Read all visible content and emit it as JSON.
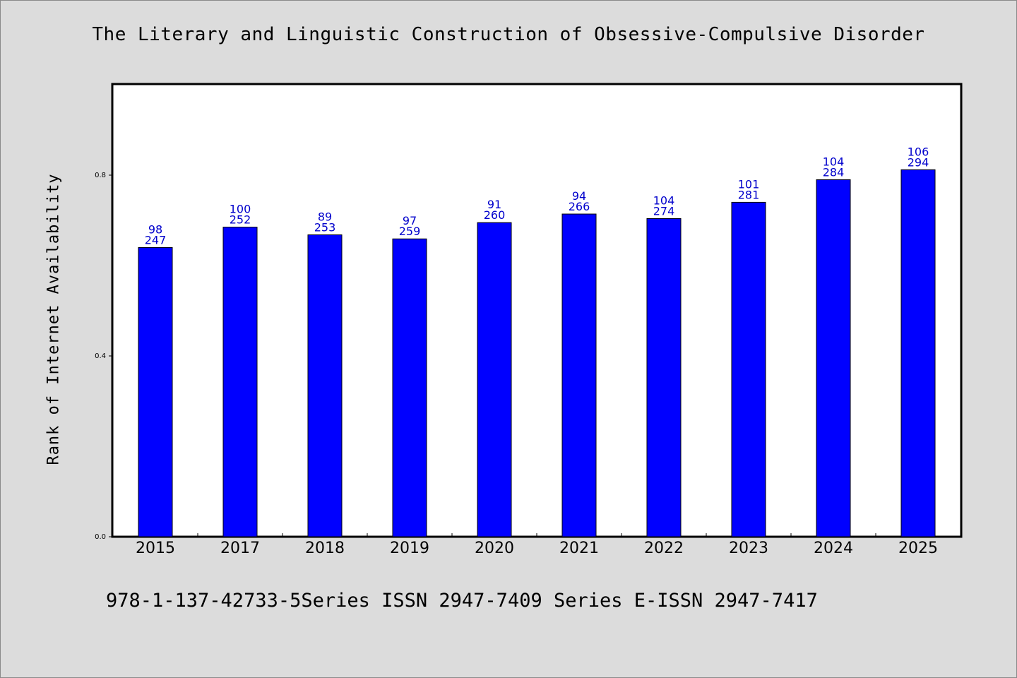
{
  "title": "The Literary and Linguistic Construction of Obsessive-Compulsive Disorder",
  "footer": "978-1-137-42733-5Series ISSN 2947-7409 Series E-ISSN 2947-7417",
  "colors": {
    "bar": "#0000ff",
    "label": "#0000cc",
    "background": "#dcdcdc",
    "plot": "#ffffff"
  },
  "chart_data": {
    "type": "bar",
    "title": "The Literary and Linguistic Construction of Obsessive-Compulsive Disorder",
    "xlabel": "",
    "ylabel": "Rank of Internet Availability",
    "categories": [
      "2015",
      "2017",
      "2018",
      "2019",
      "2020",
      "2021",
      "2022",
      "2023",
      "2024",
      "2025"
    ],
    "values": [
      0.64,
      0.685,
      0.668,
      0.659,
      0.695,
      0.714,
      0.704,
      0.74,
      0.79,
      0.812
    ],
    "annotations_top": [
      "98",
      "100",
      "89",
      "97",
      "91",
      "94",
      "104",
      "101",
      "104",
      "106"
    ],
    "annotations_bottom": [
      "247",
      "252",
      "253",
      "259",
      "260",
      "266",
      "274",
      "281",
      "284",
      "294"
    ],
    "yticks": [
      "0.0",
      "0.4",
      "0.8"
    ],
    "ylim": [
      0,
      1.0
    ],
    "grid": false,
    "legend": "none"
  }
}
